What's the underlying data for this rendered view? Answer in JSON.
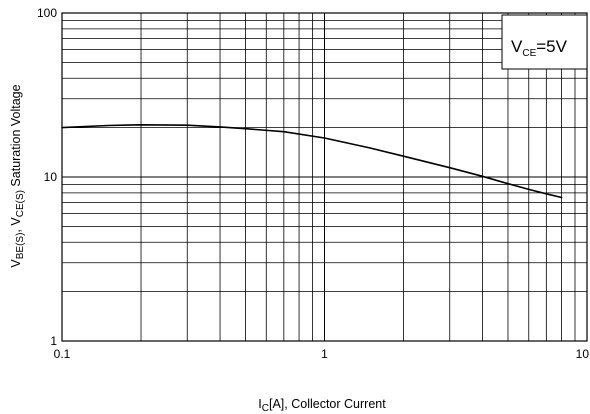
{
  "chart_data": {
    "type": "line",
    "xscale": "log",
    "yscale": "log",
    "xlim": [
      0.1,
      10
    ],
    "ylim": [
      1,
      100
    ],
    "grid": true,
    "x_ticks": [
      "0.1",
      "1",
      "10"
    ],
    "y_ticks": [
      "1",
      "10",
      "100"
    ],
    "xlabel": {
      "main": "I",
      "sub": "C",
      "rest": "[A], Collector Current"
    },
    "ylabel": {
      "p1": "V",
      "s1": "BE(S)",
      "p2": ", V",
      "s2": "CE(S)",
      "p3": " Saturation Voltage"
    },
    "legend": {
      "text": "V",
      "sub": "CE",
      "value": "=5V",
      "position": "top-right"
    },
    "series": [
      {
        "x": [
          0.1,
          0.15,
          0.2,
          0.3,
          0.4,
          0.5,
          0.7,
          1.0,
          1.5,
          2.0,
          3.0,
          4.0,
          5.0,
          6.0,
          7.0,
          8.0
        ],
        "y": [
          20.0,
          20.6,
          20.8,
          20.7,
          20.2,
          19.7,
          18.9,
          17.3,
          15.0,
          13.4,
          11.4,
          10.1,
          9.1,
          8.4,
          7.9,
          7.5
        ]
      }
    ]
  }
}
